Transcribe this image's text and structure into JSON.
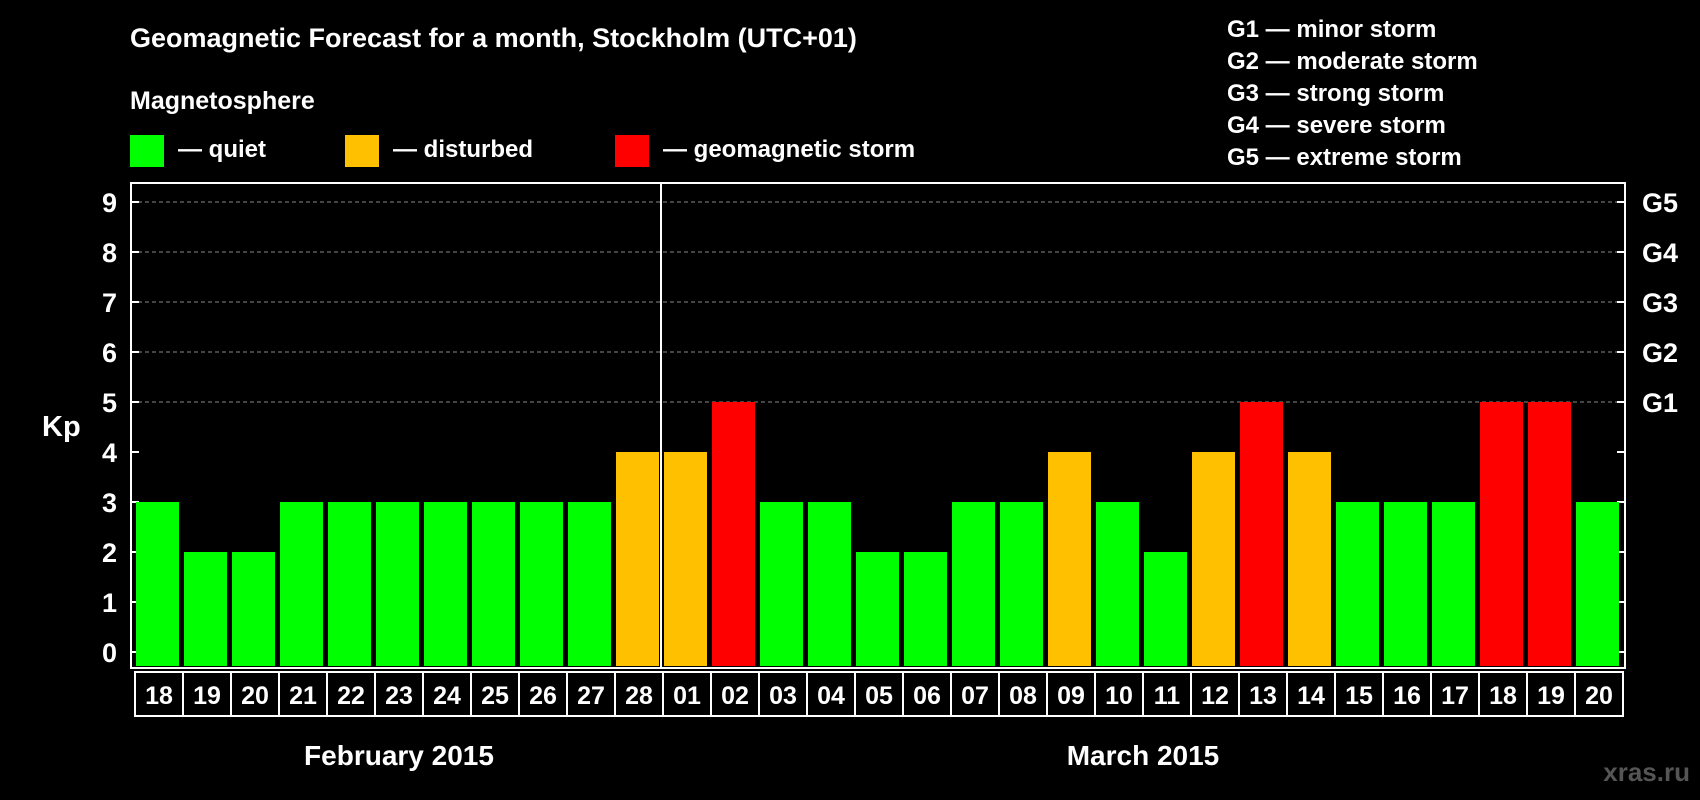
{
  "title": "Geomagnetic Forecast for a month, Stockholm (UTC+01)",
  "legend": {
    "heading": "Magnetosphere",
    "items": [
      {
        "label": "— quiet",
        "color": "#00ff00"
      },
      {
        "label": "— disturbed",
        "color": "#ffc000"
      },
      {
        "label": "— geomagnetic storm",
        "color": "#ff0000"
      }
    ]
  },
  "storm_scale": [
    "G1 — minor storm",
    "G2 — moderate storm",
    "G3 — strong storm",
    "G4 — severe storm",
    "G5 — extreme storm"
  ],
  "watermark": "xras.ru",
  "chart_data": {
    "type": "bar",
    "ylabel": "Kp",
    "ylim": [
      0,
      9
    ],
    "y_ticks": [
      0,
      1,
      2,
      3,
      4,
      5,
      6,
      7,
      8,
      9
    ],
    "right_ticks": [
      {
        "value": 5,
        "label": "G1"
      },
      {
        "value": 6,
        "label": "G2"
      },
      {
        "value": 7,
        "label": "G3"
      },
      {
        "value": 8,
        "label": "G4"
      },
      {
        "value": 9,
        "label": "G5"
      }
    ],
    "grid": true,
    "categories": [
      "18",
      "19",
      "20",
      "21",
      "22",
      "23",
      "24",
      "25",
      "26",
      "27",
      "28",
      "01",
      "02",
      "03",
      "04",
      "05",
      "06",
      "07",
      "08",
      "09",
      "10",
      "11",
      "12",
      "13",
      "14",
      "15",
      "16",
      "17",
      "18",
      "19",
      "20"
    ],
    "values": [
      3,
      2,
      2,
      3,
      3,
      3,
      3,
      3,
      3,
      3,
      4,
      4,
      5,
      3,
      3,
      2,
      2,
      3,
      3,
      4,
      3,
      2,
      4,
      5,
      4,
      3,
      3,
      3,
      5,
      5,
      3
    ],
    "months": [
      {
        "label": "February 2015",
        "from": 0,
        "to": 10
      },
      {
        "label": "March 2015",
        "from": 11,
        "to": 30
      }
    ]
  }
}
